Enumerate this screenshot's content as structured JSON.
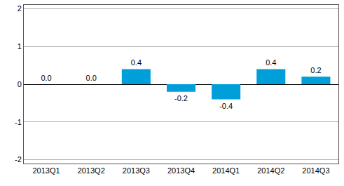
{
  "chart_data": {
    "type": "bar",
    "categories": [
      "2013Q1",
      "2013Q2",
      "2013Q3",
      "2013Q4",
      "2014Q1",
      "2014Q2",
      "2014Q3"
    ],
    "values": [
      0,
      0,
      0.4,
      -0.2,
      -0.4,
      0.4,
      0.2
    ],
    "value_labels": [
      "0.0",
      "0.0",
      "0.4",
      "-0.2",
      "-0.4",
      "0.4",
      "0.2"
    ],
    "color": "#009fda",
    "ylim": [
      -2.1,
      2.1
    ],
    "yticks": [
      -2,
      -1,
      0,
      1,
      2
    ],
    "grid": true,
    "data_labels": true
  }
}
